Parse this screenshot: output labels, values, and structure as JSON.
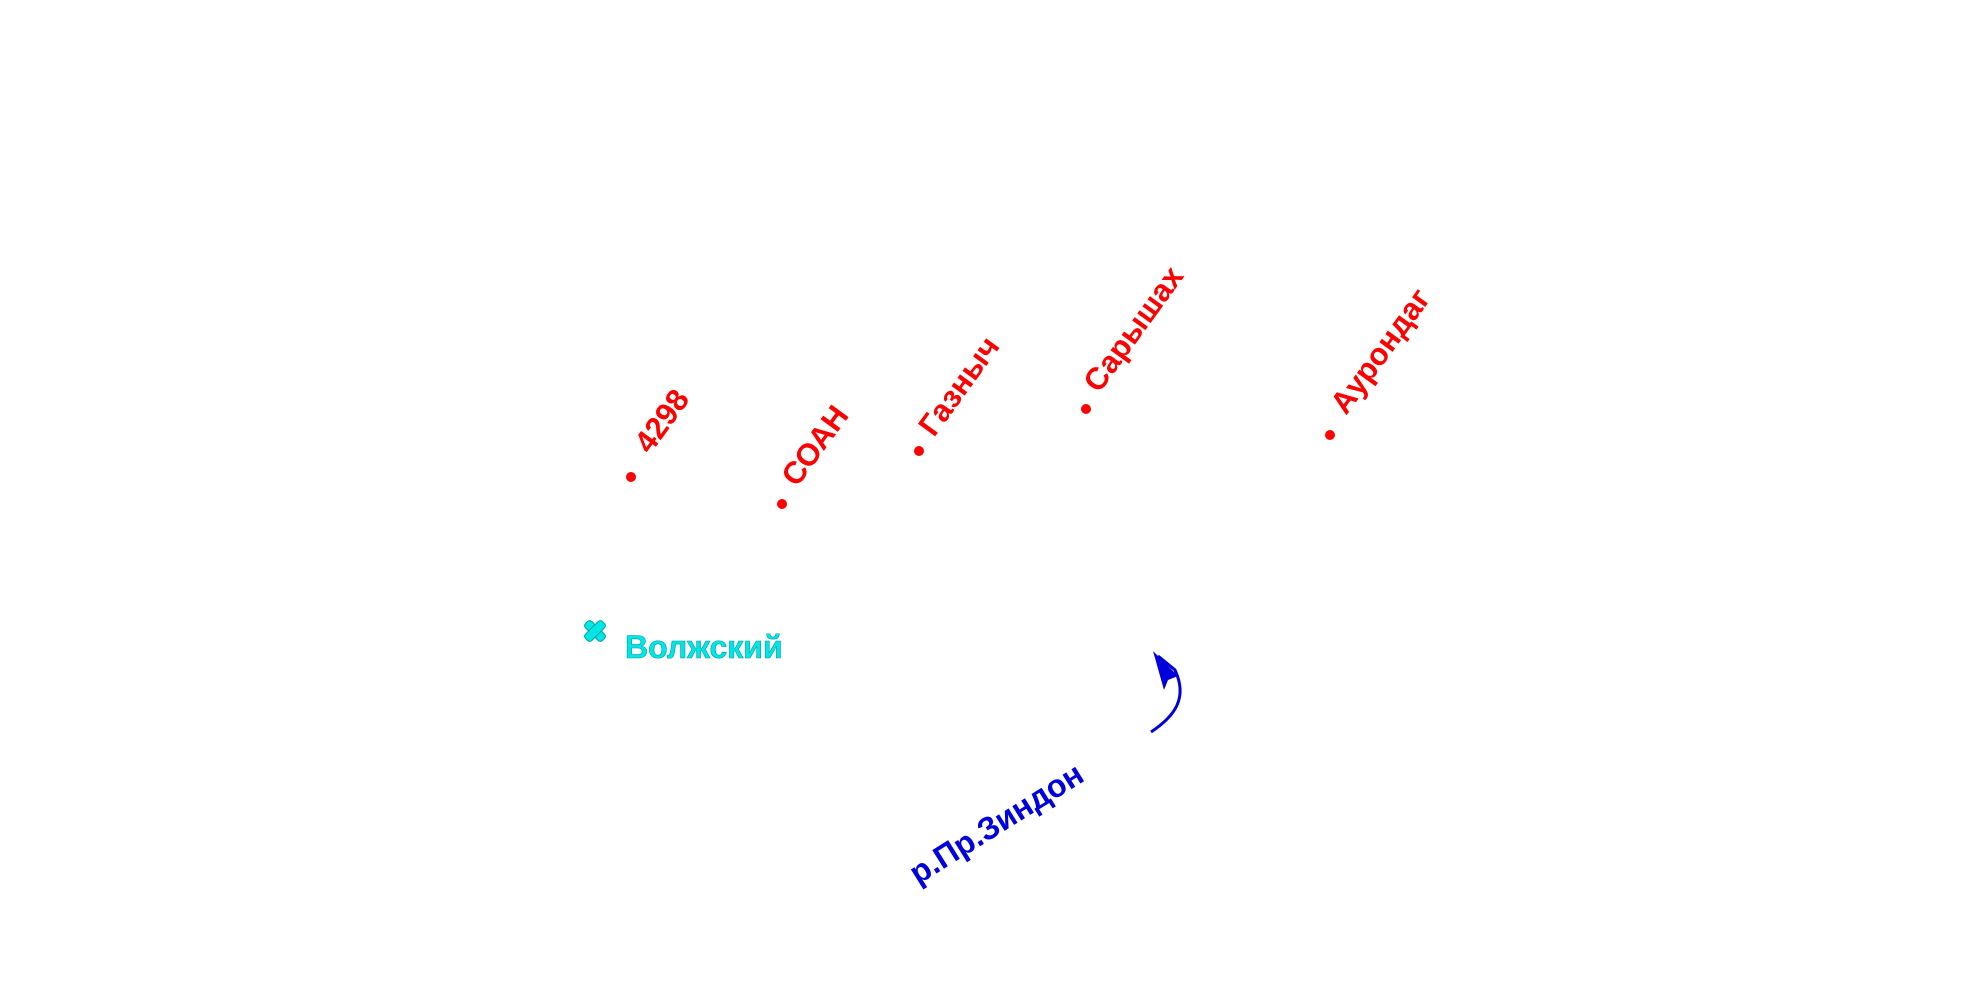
{
  "points": [
    {
      "label": "4298"
    },
    {
      "label": "СОАН"
    },
    {
      "label": "Газныч"
    },
    {
      "label": "Сарышах"
    },
    {
      "label": "Аурондаг"
    }
  ],
  "city": {
    "label": "Волжский"
  },
  "river": {
    "label": "р.Пр.Зиндон"
  }
}
